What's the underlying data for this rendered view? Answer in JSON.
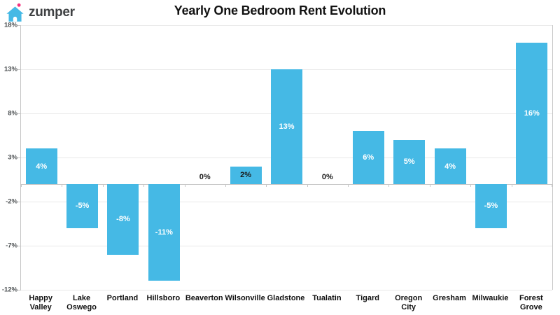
{
  "brand": {
    "name": "zumper",
    "icon": "house-icon",
    "house_color": "#45b9e5",
    "dot_color": "#f5317f",
    "wordmark_color": "#3e4042"
  },
  "chart_data": {
    "type": "bar",
    "title": "Yearly One Bedroom Rent Evolution",
    "categories": [
      "Happy Valley",
      "Lake Oswego",
      "Portland",
      "Hillsboro",
      "Beaverton",
      "Wilsonville",
      "Gladstone",
      "Tualatin",
      "Tigard",
      "Oregon City",
      "Gresham",
      "Milwaukie",
      "Forest Grove"
    ],
    "values": [
      4,
      -5,
      -8,
      -11,
      0,
      2,
      13,
      0,
      6,
      5,
      4,
      -5,
      16
    ],
    "labels": [
      "4%",
      "-5%",
      "-8%",
      "-11%",
      "0%",
      "2%",
      "13%",
      "0%",
      "6%",
      "5%",
      "4%",
      "-5%",
      "16%"
    ],
    "label_styles": [
      "white-inside",
      "white-inside",
      "white-inside",
      "white-inside",
      "dark-above",
      "dark-inside",
      "white-inside",
      "dark-above",
      "white-inside",
      "white-inside",
      "white-inside",
      "white-inside",
      "white-inside"
    ],
    "xlabel": "",
    "ylabel": "",
    "ylim": [
      -12,
      18
    ],
    "ytick_step": 5,
    "yticks": [
      "18%",
      "13%",
      "8%",
      "3%",
      "-2%",
      "-7%",
      "-12%"
    ],
    "grid": true,
    "legend": false,
    "bar_color": "#45b9e5",
    "gridline_color": "#e9e9e9",
    "axis_line_color": "#c6c6c6",
    "value_label_white": "#ffffff",
    "value_label_dark": "#1a1a1a",
    "ytick_label_color": "#4f5355",
    "xtick_label_color": "#111111"
  }
}
